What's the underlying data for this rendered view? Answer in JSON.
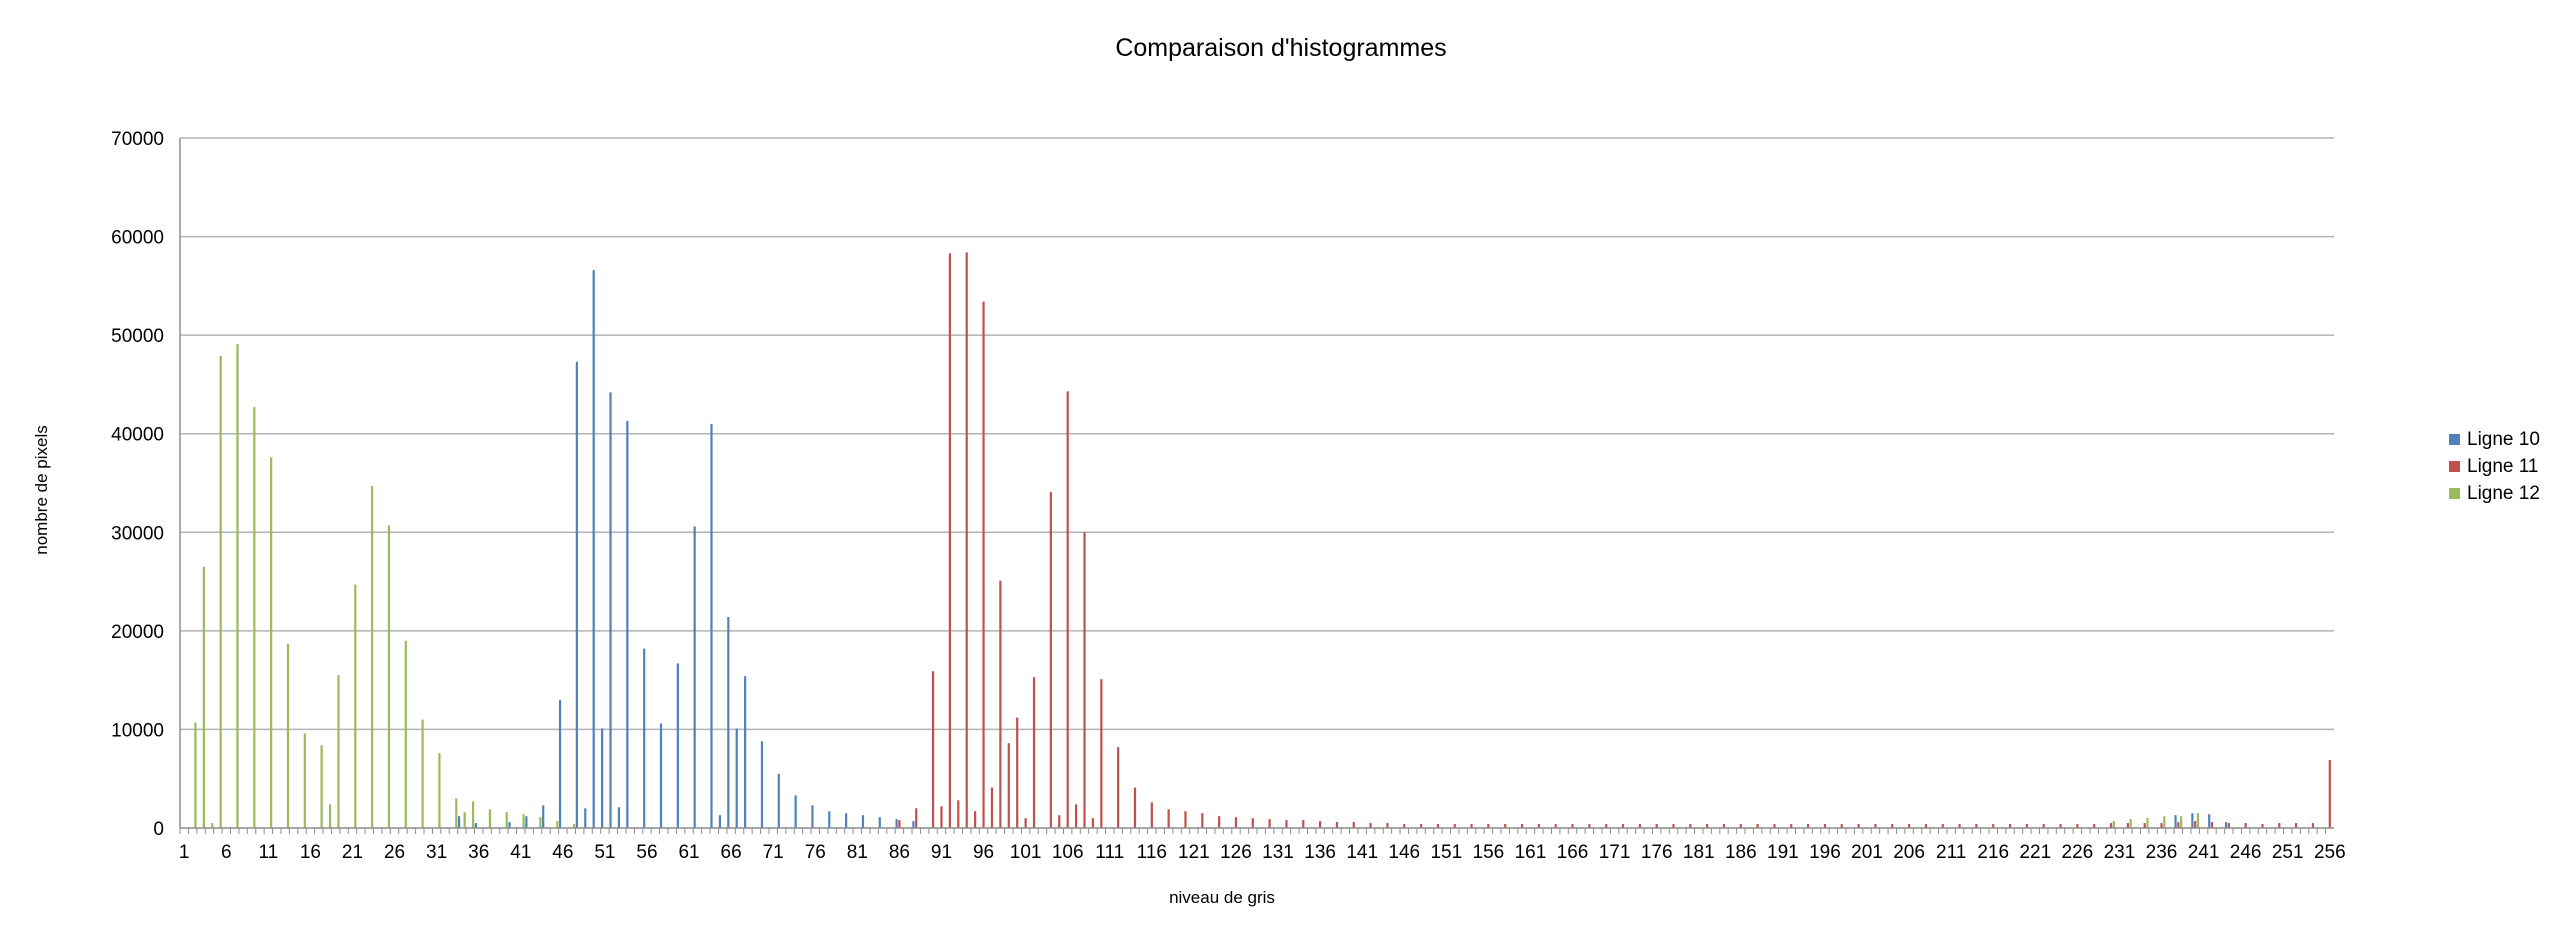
{
  "chart_data": {
    "type": "bar",
    "title": "Comparaison d'histogrammes",
    "xlabel": "niveau de gris",
    "ylabel": "nombre de pixels",
    "ylim": [
      0,
      70000
    ],
    "yticks": [
      0,
      10000,
      20000,
      30000,
      40000,
      50000,
      60000,
      70000
    ],
    "x_range": [
      1,
      256
    ],
    "xtick_step": 5,
    "grid": "horizontal",
    "legend_position": "right",
    "series": [
      {
        "name": "Ligne 10",
        "color": "#4f81bd",
        "points": [
          [
            34,
            1200
          ],
          [
            36,
            500
          ],
          [
            40,
            600
          ],
          [
            42,
            1200
          ],
          [
            44,
            2300
          ],
          [
            46,
            13000
          ],
          [
            48,
            47300
          ],
          [
            49,
            2000
          ],
          [
            50,
            56600
          ],
          [
            51,
            10100
          ],
          [
            52,
            44200
          ],
          [
            53,
            2100
          ],
          [
            54,
            41300
          ],
          [
            56,
            18200
          ],
          [
            58,
            10600
          ],
          [
            60,
            16700
          ],
          [
            62,
            30600
          ],
          [
            64,
            41000
          ],
          [
            65,
            1300
          ],
          [
            66,
            21400
          ],
          [
            67,
            10100
          ],
          [
            68,
            15400
          ],
          [
            70,
            8800
          ],
          [
            72,
            5500
          ],
          [
            74,
            3300
          ],
          [
            76,
            2300
          ],
          [
            78,
            1700
          ],
          [
            80,
            1500
          ],
          [
            82,
            1300
          ],
          [
            84,
            1100
          ],
          [
            86,
            900
          ],
          [
            88,
            700
          ],
          [
            238,
            1300
          ],
          [
            240,
            1500
          ],
          [
            242,
            1400
          ],
          [
            244,
            600
          ]
        ]
      },
      {
        "name": "Ligne 11",
        "color": "#c0504d",
        "points": [
          [
            86,
            800
          ],
          [
            88,
            2000
          ],
          [
            90,
            15900
          ],
          [
            91,
            2200
          ],
          [
            92,
            58300
          ],
          [
            93,
            2800
          ],
          [
            94,
            58400
          ],
          [
            95,
            1700
          ],
          [
            96,
            53400
          ],
          [
            97,
            4100
          ],
          [
            98,
            25100
          ],
          [
            99,
            8600
          ],
          [
            100,
            11200
          ],
          [
            101,
            1000
          ],
          [
            102,
            15300
          ],
          [
            104,
            34100
          ],
          [
            105,
            1300
          ],
          [
            106,
            44300
          ],
          [
            107,
            2400
          ],
          [
            108,
            30000
          ],
          [
            109,
            1000
          ],
          [
            110,
            15100
          ],
          [
            112,
            8200
          ],
          [
            114,
            4100
          ],
          [
            116,
            2600
          ],
          [
            118,
            1900
          ],
          [
            120,
            1700
          ],
          [
            122,
            1500
          ],
          [
            124,
            1200
          ],
          [
            126,
            1100
          ],
          [
            128,
            1000
          ],
          [
            130,
            900
          ],
          [
            132,
            800
          ],
          [
            134,
            800
          ],
          [
            136,
            700
          ],
          [
            138,
            600
          ],
          [
            140,
            600
          ],
          [
            142,
            500
          ],
          [
            144,
            500
          ],
          [
            146,
            400
          ],
          [
            148,
            400
          ],
          [
            150,
            400
          ],
          [
            152,
            400
          ],
          [
            154,
            400
          ],
          [
            156,
            400
          ],
          [
            158,
            400
          ],
          [
            160,
            400
          ],
          [
            162,
            400
          ],
          [
            164,
            400
          ],
          [
            166,
            400
          ],
          [
            168,
            400
          ],
          [
            170,
            400
          ],
          [
            172,
            400
          ],
          [
            174,
            400
          ],
          [
            176,
            400
          ],
          [
            178,
            400
          ],
          [
            180,
            400
          ],
          [
            182,
            400
          ],
          [
            184,
            400
          ],
          [
            186,
            400
          ],
          [
            188,
            400
          ],
          [
            190,
            400
          ],
          [
            192,
            400
          ],
          [
            194,
            400
          ],
          [
            196,
            400
          ],
          [
            198,
            400
          ],
          [
            200,
            400
          ],
          [
            202,
            400
          ],
          [
            204,
            400
          ],
          [
            206,
            400
          ],
          [
            208,
            400
          ],
          [
            210,
            400
          ],
          [
            212,
            400
          ],
          [
            214,
            400
          ],
          [
            216,
            400
          ],
          [
            218,
            400
          ],
          [
            220,
            400
          ],
          [
            222,
            400
          ],
          [
            224,
            400
          ],
          [
            226,
            400
          ],
          [
            228,
            400
          ],
          [
            230,
            500
          ],
          [
            232,
            500
          ],
          [
            234,
            500
          ],
          [
            236,
            500
          ],
          [
            238,
            600
          ],
          [
            240,
            700
          ],
          [
            242,
            600
          ],
          [
            244,
            500
          ],
          [
            246,
            500
          ],
          [
            248,
            400
          ],
          [
            250,
            500
          ],
          [
            252,
            500
          ],
          [
            254,
            500
          ],
          [
            256,
            6900
          ]
        ]
      },
      {
        "name": "Ligne 12",
        "color": "#9bbb59",
        "points": [
          [
            2,
            10700
          ],
          [
            3,
            26500
          ],
          [
            4,
            500
          ],
          [
            5,
            47900
          ],
          [
            7,
            49100
          ],
          [
            9,
            42700
          ],
          [
            11,
            37600
          ],
          [
            13,
            18700
          ],
          [
            15,
            9600
          ],
          [
            17,
            8400
          ],
          [
            18,
            2400
          ],
          [
            19,
            15500
          ],
          [
            21,
            24700
          ],
          [
            23,
            34700
          ],
          [
            25,
            30700
          ],
          [
            27,
            19000
          ],
          [
            29,
            11000
          ],
          [
            31,
            7600
          ],
          [
            33,
            3000
          ],
          [
            34,
            1600
          ],
          [
            35,
            2700
          ],
          [
            37,
            1900
          ],
          [
            39,
            1600
          ],
          [
            41,
            1400
          ],
          [
            43,
            1100
          ],
          [
            45,
            700
          ],
          [
            47,
            400
          ],
          [
            230,
            700
          ],
          [
            232,
            900
          ],
          [
            234,
            1000
          ],
          [
            236,
            1200
          ],
          [
            238,
            1200
          ],
          [
            240,
            1500
          ]
        ]
      }
    ]
  }
}
